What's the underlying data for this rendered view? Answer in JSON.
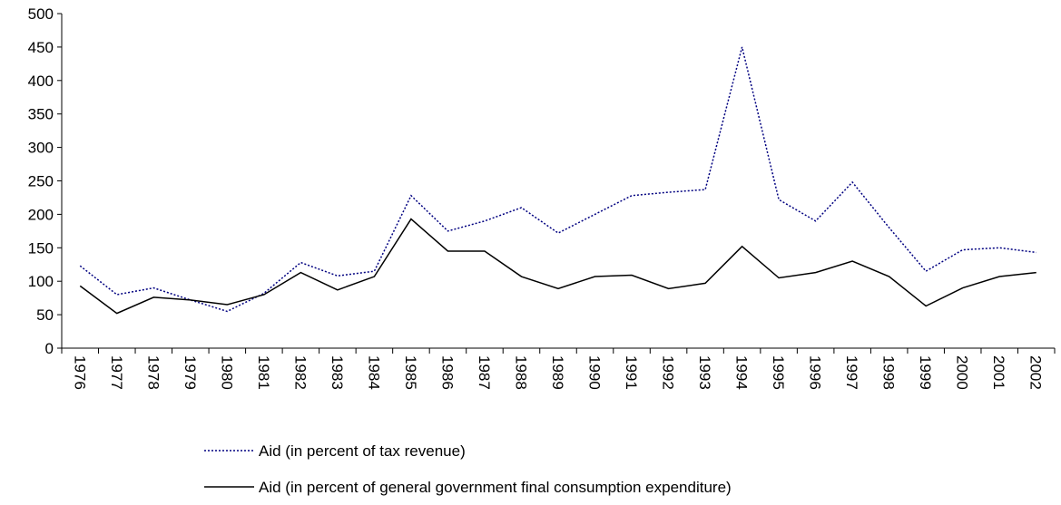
{
  "chart_data": {
    "type": "line",
    "categories": [
      "1976",
      "1977",
      "1978",
      "1979",
      "1980",
      "1981",
      "1982",
      "1983",
      "1984",
      "1985",
      "1986",
      "1987",
      "1988",
      "1989",
      "1990",
      "1991",
      "1992",
      "1993",
      "1994",
      "1995",
      "1996",
      "1997",
      "1998",
      "1999",
      "2000",
      "2001",
      "2002"
    ],
    "series": [
      {
        "name": "Aid (in percent of tax revenue)",
        "color": "#000080",
        "dash": "dotted",
        "values": [
          123,
          80,
          90,
          72,
          55,
          82,
          128,
          108,
          115,
          228,
          175,
          190,
          210,
          172,
          200,
          228,
          233,
          237,
          450,
          222,
          190,
          248,
          180,
          115,
          147,
          150,
          143
        ]
      },
      {
        "name": "Aid (in percent of general government final consumption expenditure)",
        "color": "#000000",
        "dash": "solid",
        "values": [
          93,
          52,
          76,
          72,
          65,
          80,
          113,
          87,
          107,
          193,
          145,
          145,
          107,
          89,
          107,
          109,
          89,
          97,
          152,
          105,
          113,
          130,
          107,
          63,
          90,
          107,
          113
        ]
      }
    ],
    "ylim": [
      0,
      500
    ],
    "yticks": [
      0,
      50,
      100,
      150,
      200,
      250,
      300,
      350,
      400,
      450,
      500
    ],
    "grid": false,
    "legend": "bottom"
  }
}
